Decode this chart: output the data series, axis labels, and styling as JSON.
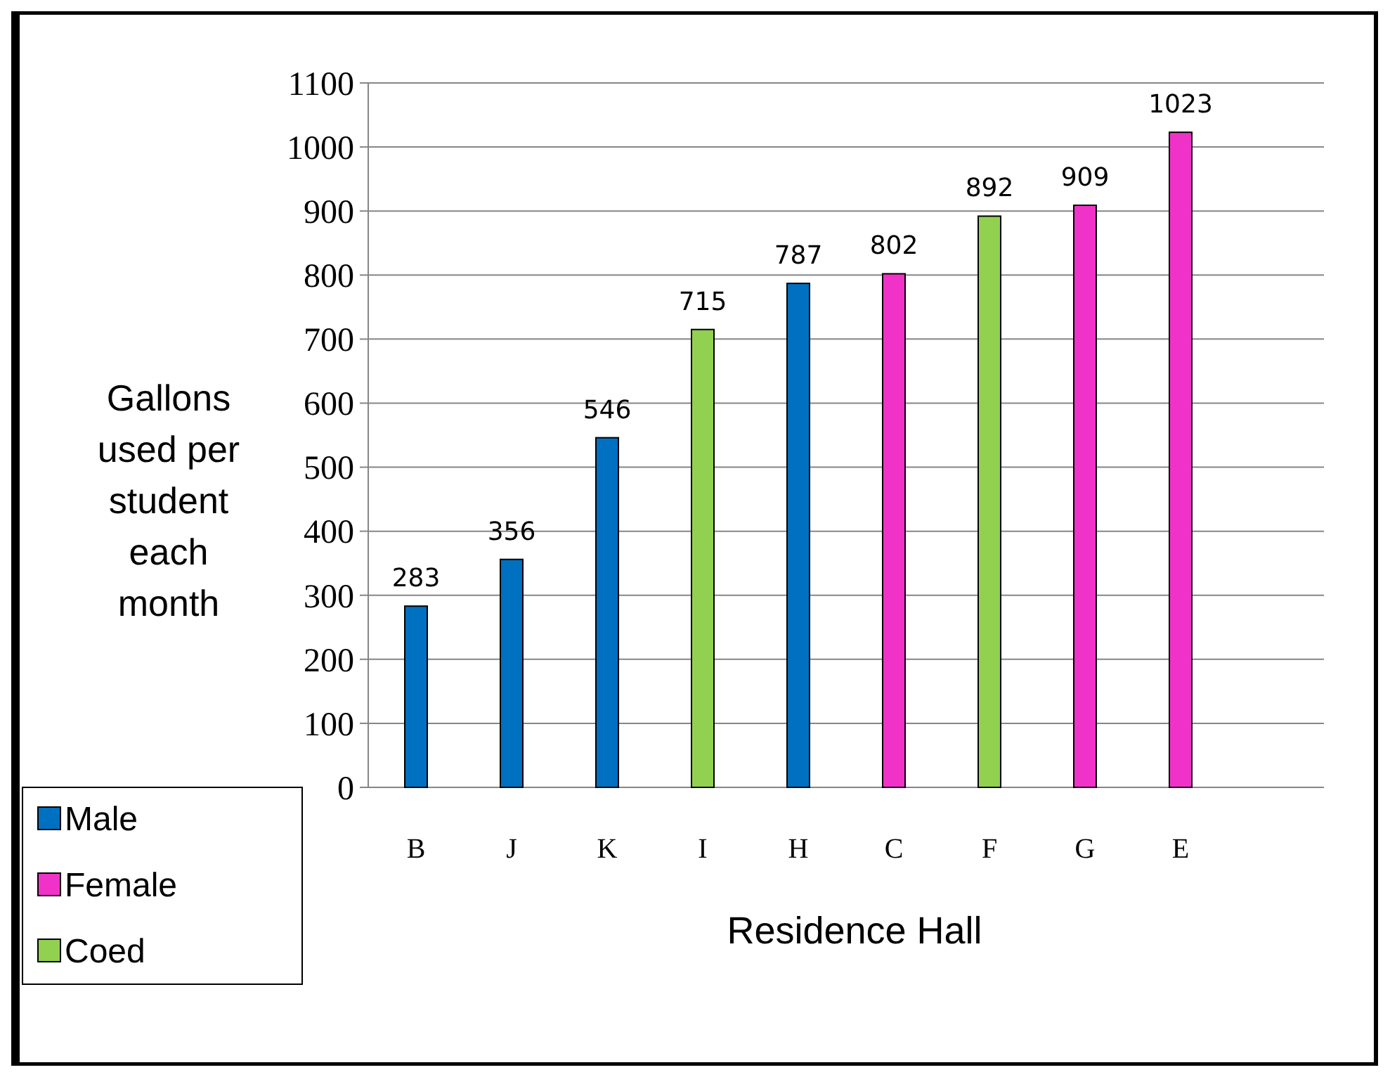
{
  "chart_data": {
    "type": "bar",
    "xlabel": "Residence Hall",
    "ylabel": "Gallons\nused per\nstudent\neach\nmonth",
    "categories": [
      "B",
      "J",
      "K",
      "I",
      "H",
      "C",
      "F",
      "G",
      "E",
      null
    ],
    "series": [
      {
        "name": "Male",
        "color": "#0070c0",
        "values": [
          283,
          356,
          546,
          null,
          787,
          null,
          null,
          null,
          null,
          null
        ]
      },
      {
        "name": "Female",
        "color": "#f032c8",
        "values": [
          null,
          null,
          null,
          null,
          null,
          802,
          null,
          909,
          1023,
          null
        ]
      },
      {
        "name": "Coed",
        "color": "#92d050",
        "values": [
          null,
          null,
          null,
          715,
          null,
          null,
          892,
          null,
          null,
          null
        ]
      }
    ],
    "ylim": [
      0,
      1100
    ],
    "yticks": [
      0,
      100,
      200,
      300,
      400,
      500,
      600,
      700,
      800,
      900,
      1000,
      1100
    ],
    "grid": "y",
    "legend": "bottom left",
    "data_labels": true
  }
}
